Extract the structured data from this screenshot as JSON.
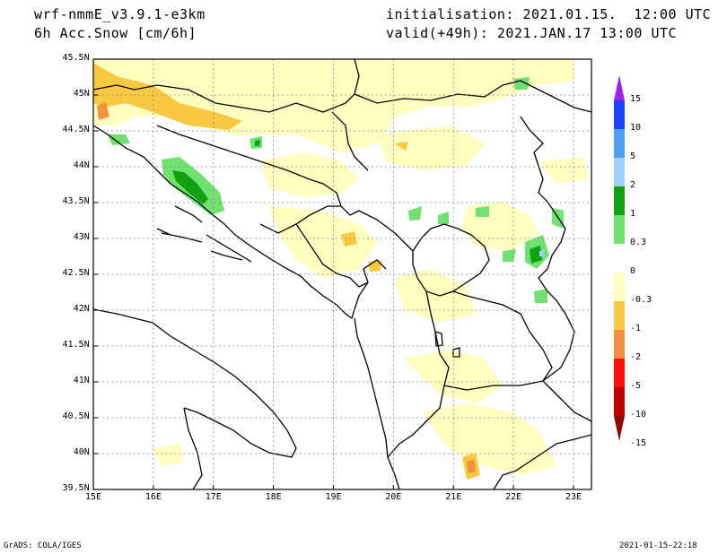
{
  "header": {
    "model": "wrf-nmmE_v3.9.1-e3km",
    "field": "6h Acc.Snow [cm/6h]",
    "init": "initialisation: 2021.01.15.  12:00 UTC",
    "valid": "valid(+49h): 2021.JAN.17 13:00 UTC"
  },
  "footer": {
    "credit": "GrADS: COLA/IGES",
    "timestamp": "2021-01-15-22:18"
  },
  "axes": {
    "lon_labels": [
      "15E",
      "16E",
      "17E",
      "18E",
      "19E",
      "20E",
      "21E",
      "22E",
      "23E"
    ],
    "lat_labels": [
      "45.5N",
      "45N",
      "44.5N",
      "44N",
      "43.5N",
      "43N",
      "42.5N",
      "42N",
      "41.5N",
      "41N",
      "40.5N",
      "40N",
      "39.5N"
    ],
    "lon_range": [
      15,
      23.3
    ],
    "lat_range": [
      39.5,
      45.5
    ]
  },
  "colorbar": {
    "labels": [
      "15",
      "10",
      "5",
      "2",
      "1",
      "0.3",
      "0",
      "-0.3",
      "-1",
      "-2",
      "-5",
      "-10",
      "-15"
    ],
    "colors": [
      "#a020f0",
      "#2040ff",
      "#50a0f0",
      "#a0d0ff",
      "#10a010",
      "#70e070",
      "#ffffff",
      "#ffffc0",
      "#f8c840",
      "#f09040",
      "#ff1010",
      "#c00000",
      "#900000"
    ]
  }
}
